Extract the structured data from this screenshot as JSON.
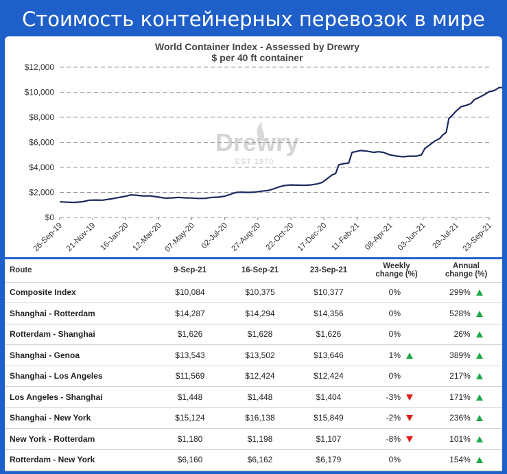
{
  "banner": {
    "title": "Стоимость контейнерных перевозок в мире"
  },
  "colors": {
    "background": "#1f5fc9",
    "line": "#1b2a5e",
    "up": "#1fa84a",
    "down": "#e0201a",
    "watermark": "#cfcfcf"
  },
  "watermark": {
    "name": "Drewry",
    "est": "EST 1970"
  },
  "chart_data": {
    "type": "line",
    "title": "World Container Index - Assessed by Drewry",
    "subtitle": "$ per 40 ft container",
    "xlabel": "",
    "ylabel": "",
    "ylim": [
      0,
      12000
    ],
    "yticks": [
      "$0",
      "$2,000",
      "$4,000",
      "$6,000",
      "$8,000",
      "$10,000",
      "$12,000"
    ],
    "xticks": [
      "26-Sep-19",
      "21-Nov-19",
      "16-Jan-20",
      "12-Mar-20",
      "07-May-20",
      "02-Jul-20",
      "27-Aug-20",
      "22-Oct-20",
      "17-Dec-20",
      "11-Feb-21",
      "08-Apr-21",
      "03-Jun-21",
      "29-Jul-21",
      "23-Sep-21"
    ],
    "grid": "horizontal dashed",
    "series": [
      {
        "values": [
          [
            0,
            1250
          ],
          [
            0.2,
            1220
          ],
          [
            0.45,
            1200
          ],
          [
            0.7,
            1260
          ],
          [
            0.9,
            1380
          ],
          [
            1.1,
            1390
          ],
          [
            1.3,
            1380
          ],
          [
            1.55,
            1480
          ],
          [
            1.8,
            1600
          ],
          [
            2.0,
            1700
          ],
          [
            2.15,
            1800
          ],
          [
            2.3,
            1780
          ],
          [
            2.5,
            1720
          ],
          [
            2.75,
            1720
          ],
          [
            3.0,
            1620
          ],
          [
            3.2,
            1540
          ],
          [
            3.4,
            1560
          ],
          [
            3.6,
            1600
          ],
          [
            3.8,
            1560
          ],
          [
            4.0,
            1550
          ],
          [
            4.2,
            1520
          ],
          [
            4.4,
            1530
          ],
          [
            4.6,
            1600
          ],
          [
            4.8,
            1620
          ],
          [
            5.0,
            1700
          ],
          [
            5.2,
            1880
          ],
          [
            5.35,
            2000
          ],
          [
            5.5,
            2020
          ],
          [
            5.7,
            2000
          ],
          [
            5.9,
            2020
          ],
          [
            6.1,
            2100
          ],
          [
            6.3,
            2150
          ],
          [
            6.5,
            2300
          ],
          [
            6.65,
            2450
          ],
          [
            6.8,
            2550
          ],
          [
            7.0,
            2600
          ],
          [
            7.2,
            2580
          ],
          [
            7.4,
            2570
          ],
          [
            7.6,
            2600
          ],
          [
            7.8,
            2680
          ],
          [
            7.95,
            2800
          ],
          [
            8.1,
            3100
          ],
          [
            8.25,
            3400
          ],
          [
            8.35,
            3500
          ],
          [
            8.45,
            4200
          ],
          [
            8.6,
            4300
          ],
          [
            8.75,
            4350
          ],
          [
            8.85,
            5200
          ],
          [
            8.95,
            5250
          ],
          [
            9.1,
            5350
          ],
          [
            9.3,
            5300
          ],
          [
            9.5,
            5200
          ],
          [
            9.65,
            5250
          ],
          [
            9.8,
            5200
          ],
          [
            10.0,
            5000
          ],
          [
            10.2,
            4900
          ],
          [
            10.4,
            4850
          ],
          [
            10.6,
            4900
          ],
          [
            10.8,
            4900
          ],
          [
            10.95,
            5000
          ],
          [
            11.05,
            5500
          ],
          [
            11.2,
            5800
          ],
          [
            11.35,
            6100
          ],
          [
            11.5,
            6300
          ],
          [
            11.6,
            6600
          ],
          [
            11.7,
            6800
          ],
          [
            11.78,
            7900
          ],
          [
            11.9,
            8200
          ],
          [
            12.0,
            8500
          ],
          [
            12.15,
            8850
          ],
          [
            12.3,
            8950
          ],
          [
            12.45,
            9100
          ],
          [
            12.55,
            9400
          ],
          [
            12.7,
            9600
          ],
          [
            12.85,
            9800
          ],
          [
            13.0,
            10050
          ],
          [
            13.1,
            10090
          ],
          [
            13.2,
            10200
          ],
          [
            13.3,
            10370
          ],
          [
            13.4,
            10377
          ]
        ]
      }
    ]
  },
  "table": {
    "headers": {
      "route": "Route",
      "d1": "9-Sep-21",
      "d2": "16-Sep-21",
      "d3": "23-Sep-21",
      "weekly_l1": "Weekly",
      "weekly_l2": "change (%)",
      "annual_l1": "Annual",
      "annual_l2": "change (%)"
    },
    "rows": [
      {
        "route": "Composite Index",
        "d1": "$10,084",
        "d2": "$10,375",
        "d3": "$10,377",
        "weekly": "0%",
        "weekly_dir": "none",
        "annual": "299%",
        "annual_dir": "up"
      },
      {
        "route": "Shanghai - Rotterdam",
        "d1": "$14,287",
        "d2": "$14,294",
        "d3": "$14,356",
        "weekly": "0%",
        "weekly_dir": "none",
        "annual": "528%",
        "annual_dir": "up"
      },
      {
        "route": "Rotterdam - Shanghai",
        "d1": "$1,626",
        "d2": "$1,628",
        "d3": "$1,626",
        "weekly": "0%",
        "weekly_dir": "none",
        "annual": "26%",
        "annual_dir": "up"
      },
      {
        "route": "Shanghai - Genoa",
        "d1": "$13,543",
        "d2": "$13,502",
        "d3": "$13,646",
        "weekly": "1%",
        "weekly_dir": "up",
        "annual": "389%",
        "annual_dir": "up"
      },
      {
        "route": "Shanghai - Los Angeles",
        "d1": "$11,569",
        "d2": "$12,424",
        "d3": "$12,424",
        "weekly": "0%",
        "weekly_dir": "none",
        "annual": "217%",
        "annual_dir": "up"
      },
      {
        "route": "Los Angeles - Shanghai",
        "d1": "$1,448",
        "d2": "$1,448",
        "d3": "$1,404",
        "weekly": "-3%",
        "weekly_dir": "down",
        "annual": "171%",
        "annual_dir": "up"
      },
      {
        "route": "Shanghai - New York",
        "d1": "$15,124",
        "d2": "$16,138",
        "d3": "$15,849",
        "weekly": "-2%",
        "weekly_dir": "down",
        "annual": "236%",
        "annual_dir": "up"
      },
      {
        "route": "New York - Rotterdam",
        "d1": "$1,180",
        "d2": "$1,198",
        "d3": "$1,107",
        "weekly": "-8%",
        "weekly_dir": "down",
        "annual": "101%",
        "annual_dir": "up"
      },
      {
        "route": "Rotterdam - New York",
        "d1": "$6,160",
        "d2": "$6,162",
        "d3": "$6,179",
        "weekly": "0%",
        "weekly_dir": "none",
        "annual": "154%",
        "annual_dir": "up"
      }
    ]
  }
}
